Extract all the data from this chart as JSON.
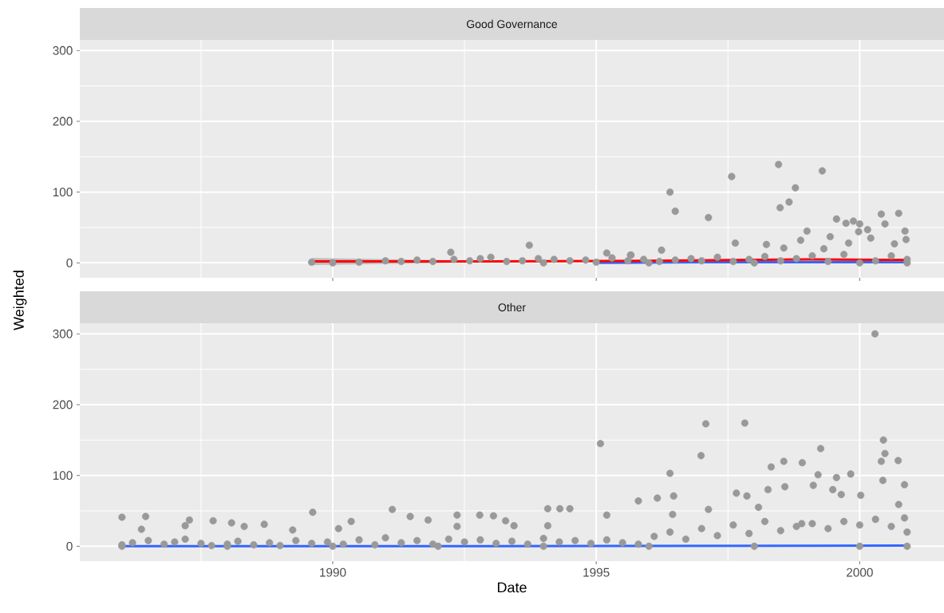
{
  "chart_data": [
    {
      "type": "scatter",
      "title": "Good Governance",
      "ylabel": "Weighted",
      "xlim": [
        1985.2,
        2001.6
      ],
      "ylim": [
        -21,
        315
      ],
      "xticks": [
        {
          "value": 1987.5,
          "label": null
        },
        1990,
        {
          "value": 1992.5,
          "label": null
        },
        1995,
        {
          "value": 1997.5,
          "label": null
        },
        2000
      ],
      "yticks": [
        0,
        {
          "value": 50,
          "label": null
        },
        100,
        {
          "value": 150,
          "label": null
        },
        200,
        {
          "value": 250,
          "label": null
        },
        300
      ],
      "tick_labels": "y",
      "grid": true,
      "marker": "circle",
      "series": [
        {
          "color": "#999999",
          "x": [
            1989.6,
            1990.0,
            1990.5,
            1991.0,
            1991.3,
            1991.6,
            1991.9,
            1992.24,
            1992.3,
            1992.6,
            1992.8,
            1993.0,
            1993.3,
            1993.6,
            1993.73,
            1993.9,
            1994.0,
            1994.2,
            1994.5,
            1994.8,
            1995.0,
            1995.2,
            1995.3,
            1995.6,
            1995.65,
            1995.66,
            1995.9,
            1996.0,
            1996.2,
            1996.24,
            1996.4,
            1996.5,
            1996.5,
            1996.8,
            1997.0,
            1997.13,
            1997.3,
            1997.57,
            1997.6,
            1997.64,
            1997.9,
            1998.0,
            1998.2,
            1998.23,
            1998.46,
            1998.49,
            1998.5,
            1998.56,
            1998.66,
            1998.78,
            1998.8,
            1998.88,
            1999.0,
            1999.1,
            1999.29,
            1999.32,
            1999.4,
            1999.44,
            1999.56,
            1999.7,
            1999.74,
            1999.79,
            1999.88,
            1999.98,
            2000.0,
            2000.0,
            2000.15,
            2000.21,
            2000.3,
            2000.41,
            2000.48,
            2000.6,
            2000.66,
            2000.74,
            2000.86,
            2000.88,
            2000.9,
            2000.9
          ],
          "values": [
            1,
            0,
            1,
            3,
            2,
            4,
            2,
            15,
            5,
            3,
            6,
            8,
            2,
            3,
            25,
            6,
            0,
            5,
            3,
            4,
            1,
            14,
            7,
            3,
            11,
            11,
            5,
            0,
            2,
            18,
            100,
            73,
            4,
            6,
            3,
            64,
            8,
            122,
            2,
            28,
            5,
            0,
            9,
            26,
            139,
            78,
            3,
            21,
            86,
            106,
            6,
            32,
            45,
            10,
            130,
            20,
            2,
            37,
            62,
            12,
            56,
            28,
            59,
            44,
            55,
            0,
            47,
            35,
            3,
            69,
            55,
            10,
            27,
            70,
            45,
            33,
            5,
            0
          ]
        },
        {
          "type": "line",
          "marker": "none",
          "color": "#3366ff",
          "x": [
            1995.0,
            1997.0,
            1999.0,
            2000.9
          ],
          "values": [
            0,
            1,
            1,
            1
          ]
        },
        {
          "type": "line",
          "marker": "none",
          "color": "#ff0000",
          "x": [
            1989.6,
            1993.0,
            1996.0,
            1999.0,
            2000.9
          ],
          "values": [
            2,
            2,
            3,
            5,
            4
          ],
          "lower": [
            -3,
            1,
            2,
            4,
            2
          ],
          "upper": [
            7,
            3,
            4,
            6,
            6
          ]
        }
      ]
    },
    {
      "type": "scatter",
      "title": "Other",
      "xlabel": "Date",
      "xlim": [
        1985.2,
        2001.6
      ],
      "ylim": [
        -21,
        315
      ],
      "xticks": [
        {
          "value": 1987.5,
          "label": null
        },
        1990,
        {
          "value": 1992.5,
          "label": null
        },
        1995,
        {
          "value": 1997.5,
          "label": null
        },
        2000
      ],
      "yticks": [
        0,
        {
          "value": 50,
          "label": null
        },
        100,
        {
          "value": 150,
          "label": null
        },
        200,
        {
          "value": 250,
          "label": null
        },
        300
      ],
      "grid": true,
      "marker": "circle",
      "series": [
        {
          "color": "#999999",
          "x": [
            1986.0,
            1986.0,
            1986.0,
            1986.2,
            1986.37,
            1986.45,
            1986.5,
            1986.8,
            1987.0,
            1987.2,
            1987.28,
            1987.2,
            1987.5,
            1987.7,
            1987.73,
            1988.0,
            1988.0,
            1988.08,
            1988.2,
            1988.32,
            1988.5,
            1988.7,
            1988.8,
            1989.0,
            1989.24,
            1989.3,
            1989.6,
            1989.62,
            1989.9,
            1990.0,
            1990.11,
            1990.2,
            1990.35,
            1990.5,
            1990.8,
            1991.0,
            1991.13,
            1991.3,
            1991.47,
            1991.6,
            1991.81,
            1991.9,
            1992.0,
            1992.2,
            1992.36,
            1992.36,
            1992.5,
            1992.79,
            1992.8,
            1993.05,
            1993.1,
            1993.28,
            1993.4,
            1993.44,
            1993.7,
            1994.0,
            1994.0,
            1994.08,
            1994.08,
            1994.31,
            1994.5,
            1994.3,
            1994.6,
            1994.9,
            1995.08,
            1995.2,
            1995.2,
            1995.5,
            1995.8,
            1995.8,
            1996.0,
            1996.1,
            1996.16,
            1996.4,
            1996.4,
            1996.45,
            1996.47,
            1996.7,
            1996.99,
            1997.0,
            1997.08,
            1997.13,
            1997.3,
            1997.6,
            1997.66,
            1997.82,
            1997.86,
            1997.9,
            1998.0,
            1998.08,
            1998.2,
            1998.26,
            1998.32,
            1998.5,
            1998.56,
            1998.58,
            1998.8,
            1998.9,
            1998.91,
            1999.1,
            1999.12,
            1999.21,
            1999.26,
            1999.4,
            1999.49,
            1999.56,
            1999.65,
            1999.7,
            1999.83,
            2000.0,
            2000.0,
            2000.02,
            2000.29,
            2000.3,
            2000.41,
            2000.44,
            2000.45,
            2000.48,
            2000.6,
            2000.73,
            2000.74,
            2000.85,
            2000.85,
            2000.9,
            2000.9
          ],
          "values": [
            0,
            2,
            41,
            5,
            24,
            42,
            8,
            3,
            6,
            10,
            37,
            29,
            4,
            1,
            36,
            0,
            3,
            33,
            7,
            28,
            2,
            31,
            5,
            1,
            23,
            8,
            4,
            48,
            6,
            0,
            25,
            3,
            35,
            9,
            2,
            12,
            52,
            5,
            42,
            8,
            37,
            3,
            0,
            10,
            44,
            28,
            6,
            44,
            9,
            43,
            4,
            36,
            7,
            29,
            3,
            0,
            11,
            53,
            29,
            53,
            53,
            6,
            8,
            4,
            145,
            9,
            44,
            5,
            3,
            64,
            0,
            14,
            68,
            20,
            103,
            45,
            71,
            10,
            128,
            25,
            173,
            52,
            15,
            30,
            75,
            174,
            71,
            18,
            0,
            55,
            35,
            80,
            112,
            22,
            120,
            84,
            28,
            32,
            118,
            32,
            86,
            101,
            138,
            25,
            80,
            97,
            73,
            35,
            102,
            0,
            30,
            72,
            300,
            38,
            120,
            93,
            150,
            131,
            28,
            121,
            59,
            87,
            40,
            20,
            0
          ]
        },
        {
          "type": "line",
          "marker": "none",
          "color": "#3366ff",
          "x": [
            1986.0,
            1993.0,
            2000.9
          ],
          "values": [
            0,
            0,
            1
          ]
        }
      ]
    }
  ]
}
